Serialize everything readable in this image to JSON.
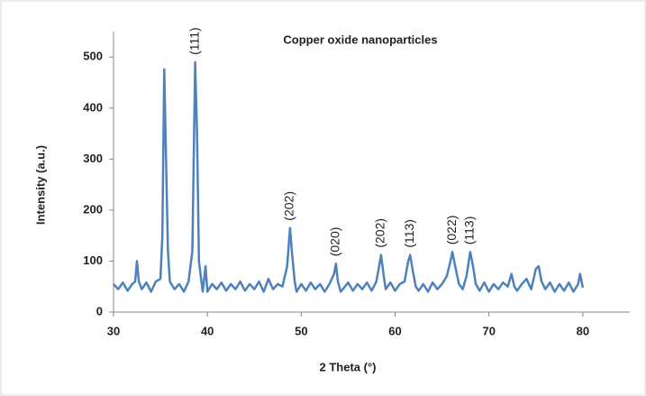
{
  "chart_data": {
    "type": "line",
    "title": "Copper oxide nanoparticles",
    "x_label": "2 Theta (°)",
    "y_label": "Intensity (a.u.)",
    "x": [
      30,
      30.5,
      31,
      31.5,
      32,
      32.3,
      32.5,
      32.7,
      33,
      33.5,
      34,
      34.5,
      35,
      35.2,
      35.4,
      35.6,
      35.8,
      36,
      36.5,
      37,
      37.5,
      38,
      38.4,
      38.7,
      38.9,
      39.1,
      39.5,
      39.8,
      40,
      40.5,
      41,
      41.5,
      42,
      42.5,
      43,
      43.5,
      44,
      44.5,
      45,
      45.5,
      46,
      46.5,
      47,
      47.5,
      48,
      48.5,
      48.8,
      49,
      49.3,
      49.5,
      50,
      50.5,
      51,
      51.5,
      52,
      52.5,
      53,
      53.5,
      53.7,
      53.9,
      54.2,
      55,
      55.5,
      56,
      56.5,
      57,
      57.5,
      58,
      58.3,
      58.5,
      58.8,
      59,
      59.5,
      60,
      60.5,
      61,
      61.4,
      61.6,
      61.9,
      62.2,
      62.5,
      63,
      63.5,
      64,
      64.5,
      65,
      65.5,
      65.9,
      66.1,
      66.4,
      66.8,
      67.2,
      67.6,
      68,
      68.3,
      68.6,
      69,
      69.5,
      70,
      70.5,
      71,
      71.5,
      72,
      72.4,
      72.7,
      73,
      73.5,
      74,
      74.5,
      75,
      75.3,
      75.6,
      76,
      76.5,
      77,
      77.5,
      78,
      78.5,
      79,
      79.5,
      79.7,
      80
    ],
    "series": [
      {
        "color": "#4f81bd",
        "values": [
          55,
          45,
          58,
          42,
          55,
          60,
          100,
          60,
          45,
          58,
          40,
          60,
          65,
          150,
          476,
          300,
          120,
          60,
          45,
          55,
          40,
          60,
          120,
          490,
          350,
          100,
          40,
          90,
          40,
          55,
          45,
          58,
          42,
          55,
          45,
          60,
          42,
          55,
          45,
          60,
          40,
          65,
          45,
          55,
          50,
          90,
          165,
          120,
          60,
          40,
          55,
          42,
          58,
          45,
          55,
          40,
          55,
          75,
          95,
          60,
          40,
          58,
          42,
          55,
          45,
          58,
          42,
          60,
          90,
          112,
          70,
          45,
          58,
          42,
          55,
          60,
          100,
          112,
          80,
          50,
          42,
          55,
          40,
          58,
          45,
          55,
          70,
          100,
          118,
          90,
          55,
          45,
          70,
          118,
          90,
          55,
          42,
          58,
          40,
          55,
          45,
          58,
          50,
          75,
          50,
          42,
          55,
          65,
          45,
          85,
          90,
          60,
          45,
          58,
          40,
          55,
          42,
          58,
          40,
          55,
          75,
          48
        ]
      }
    ],
    "annotations": [
      {
        "label": "(111)",
        "x": 38.7,
        "y": 490
      },
      {
        "label": "(202)",
        "x": 48.8,
        "y": 165
      },
      {
        "label": "(020)",
        "x": 53.7,
        "y": 95
      },
      {
        "label": "(202)",
        "x": 58.5,
        "y": 112
      },
      {
        "label": "(113)",
        "x": 61.6,
        "y": 112
      },
      {
        "label": "(022)",
        "x": 66.1,
        "y": 118
      },
      {
        "label": "(113)",
        "x": 68,
        "y": 118
      }
    ],
    "xlim": [
      30,
      85
    ],
    "ylim": [
      0,
      550
    ],
    "xticks": [
      30,
      40,
      50,
      60,
      70,
      80
    ],
    "yticks": [
      0,
      100,
      200,
      300,
      400,
      500
    ],
    "grid": false
  }
}
